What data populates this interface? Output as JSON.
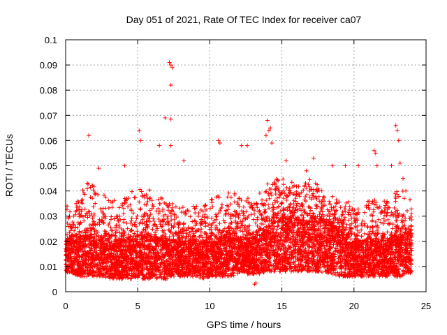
{
  "chart_data": {
    "type": "scatter",
    "title": "Day 051 of 2021, Rate Of TEC Index for receiver ca07",
    "xlabel": "GPS time / hours",
    "ylabel": "ROTI / TECUs",
    "xlim": [
      0,
      25
    ],
    "ylim": [
      0,
      0.1
    ],
    "x_ticks": [
      0,
      5,
      10,
      15,
      20,
      25
    ],
    "x_tick_labels": [
      "0",
      "5",
      "10",
      "15",
      "20",
      "25"
    ],
    "y_ticks": [
      0,
      0.01,
      0.02,
      0.03,
      0.04,
      0.05,
      0.06,
      0.07,
      0.08,
      0.09,
      0.1
    ],
    "y_tick_labels": [
      "0",
      "0.01",
      "0.02",
      "0.03",
      "0.04",
      "0.05",
      "0.06",
      "0.07",
      "0.08",
      "0.09",
      "0.1"
    ],
    "grid": true,
    "marker": "+",
    "colors": {
      "series": "#ff0000",
      "grid": "#a0a0a0",
      "axis": "#000000"
    },
    "series": [
      {
        "name": "ROTI",
        "x": [
          0.1,
          1.6,
          2.3,
          4.1,
          5.1,
          5.2,
          6.5,
          6.9,
          7.2,
          7.3,
          7.3,
          7.3,
          7.3,
          7.4,
          8.2,
          10.6,
          10.7,
          12.2,
          12.6,
          13.1,
          13.2,
          13.9,
          14.0,
          14.1,
          14.2,
          14.3,
          15.3,
          16.7,
          17.2,
          18.5,
          19.4,
          20.3,
          21.4,
          21.5,
          21.6,
          22.6,
          22.9,
          23.0,
          23.1,
          23.2,
          23.4,
          23.6
        ],
        "y": [
          0.034,
          0.062,
          0.049,
          0.05,
          0.064,
          0.06,
          0.058,
          0.069,
          0.091,
          0.09,
          0.082,
          0.0685,
          0.058,
          0.089,
          0.052,
          0.06,
          0.059,
          0.058,
          0.058,
          0.003,
          0.0035,
          0.062,
          0.068,
          0.064,
          0.065,
          0.059,
          0.052,
          0.048,
          0.053,
          0.05,
          0.05,
          0.05,
          0.056,
          0.055,
          0.05,
          0.05,
          0.066,
          0.064,
          0.06,
          0.051,
          0.045,
          0.04
        ]
      }
    ],
    "density_envelope": {
      "hours": [
        0,
        0.5,
        1,
        1.5,
        2,
        2.5,
        3,
        3.5,
        4,
        4.5,
        5,
        5.5,
        6,
        6.5,
        7,
        7.5,
        8,
        8.5,
        9,
        9.5,
        10,
        10.5,
        11,
        11.5,
        12,
        12.5,
        13,
        13.5,
        14,
        14.5,
        15,
        15.5,
        16,
        16.5,
        17,
        17.5,
        18,
        18.5,
        19,
        19.5,
        20,
        20.5,
        21,
        21.5,
        22,
        22.5,
        23,
        23.5,
        24
      ],
      "lower": [
        0.007,
        0.007,
        0.006,
        0.006,
        0.006,
        0.006,
        0.005,
        0.005,
        0.005,
        0.005,
        0.005,
        0.005,
        0.005,
        0.005,
        0.005,
        0.006,
        0.006,
        0.006,
        0.006,
        0.005,
        0.006,
        0.006,
        0.006,
        0.006,
        0.007,
        0.007,
        0.007,
        0.007,
        0.008,
        0.008,
        0.008,
        0.008,
        0.008,
        0.008,
        0.008,
        0.008,
        0.007,
        0.007,
        0.006,
        0.006,
        0.006,
        0.006,
        0.006,
        0.006,
        0.006,
        0.006,
        0.006,
        0.006,
        0.007
      ],
      "core_upper": [
        0.02,
        0.022,
        0.023,
        0.022,
        0.021,
        0.021,
        0.02,
        0.02,
        0.02,
        0.021,
        0.022,
        0.022,
        0.022,
        0.021,
        0.021,
        0.02,
        0.02,
        0.02,
        0.02,
        0.02,
        0.021,
        0.021,
        0.022,
        0.022,
        0.021,
        0.021,
        0.021,
        0.022,
        0.025,
        0.028,
        0.029,
        0.029,
        0.029,
        0.029,
        0.029,
        0.029,
        0.028,
        0.026,
        0.024,
        0.022,
        0.021,
        0.02,
        0.02,
        0.02,
        0.02,
        0.021,
        0.023,
        0.024,
        0.022
      ],
      "upper": [
        0.032,
        0.036,
        0.04,
        0.043,
        0.042,
        0.04,
        0.037,
        0.036,
        0.037,
        0.04,
        0.043,
        0.043,
        0.041,
        0.038,
        0.037,
        0.035,
        0.034,
        0.034,
        0.034,
        0.035,
        0.037,
        0.038,
        0.039,
        0.04,
        0.039,
        0.038,
        0.037,
        0.04,
        0.044,
        0.045,
        0.045,
        0.044,
        0.044,
        0.044,
        0.045,
        0.044,
        0.042,
        0.04,
        0.038,
        0.036,
        0.035,
        0.035,
        0.036,
        0.039,
        0.037,
        0.036,
        0.041,
        0.043,
        0.036
      ]
    }
  }
}
